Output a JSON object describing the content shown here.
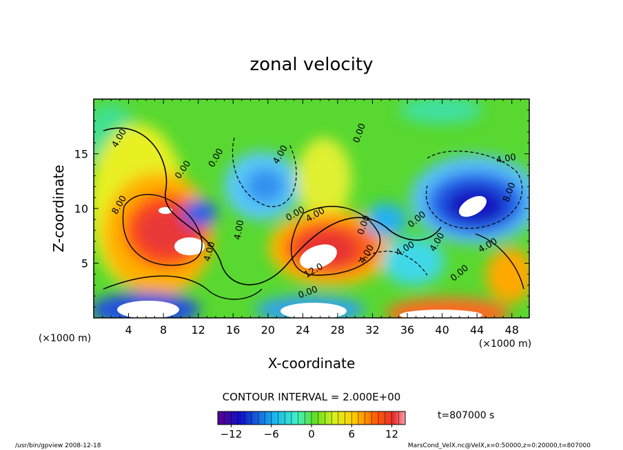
{
  "chart_data": {
    "type": "heatmap",
    "title": "zonal velocity",
    "xlabel": "X-coordinate",
    "ylabel": "Z-coordinate",
    "x_scale_note": "(×1000 m)",
    "y_scale_note": "(×1000 m)",
    "xlim": [
      0,
      50
    ],
    "ylim": [
      0,
      20
    ],
    "x_ticks": [
      4,
      8,
      12,
      16,
      20,
      24,
      28,
      32,
      36,
      40,
      44,
      48
    ],
    "x_tick_labels": [
      "4",
      "8",
      "12",
      "16",
      "20",
      "24",
      "28",
      "32",
      "36",
      "40",
      "44",
      "48"
    ],
    "y_ticks": [
      5,
      10,
      15
    ],
    "y_tick_labels": [
      "5",
      "10",
      "15"
    ],
    "contour_interval_text": "CONTOUR INTERVAL = 2.000E+00",
    "time_text": "t=807000 s",
    "colorbar": {
      "range": [
        -14,
        14
      ],
      "ticks": [
        -12,
        -6,
        0,
        6,
        12
      ],
      "tick_labels": [
        "−12",
        "−6",
        "0",
        "6",
        "12"
      ]
    },
    "contour_labels": [
      {
        "text": "4.00",
        "x": 3.2,
        "z": 16.3,
        "angle": -60
      },
      {
        "text": "8.00",
        "x": 3.2,
        "z": 10.2,
        "angle": -60
      },
      {
        "text": "0.00",
        "x": 10.5,
        "z": 13.4,
        "angle": -55
      },
      {
        "text": "4.00",
        "x": 13.6,
        "z": 6.0,
        "angle": -75
      },
      {
        "text": "4.00",
        "x": 17.0,
        "z": 8.0,
        "angle": -80
      },
      {
        "text": "0.00",
        "x": 14.3,
        "z": 14.5,
        "angle": -60
      },
      {
        "text": "4.00",
        "x": 21.7,
        "z": 14.8,
        "angle": -60
      },
      {
        "text": "0.00",
        "x": 23.3,
        "z": 9.3,
        "angle": -30
      },
      {
        "text": "4.00",
        "x": 25.6,
        "z": 9.2,
        "angle": -30
      },
      {
        "text": "12.0",
        "x": 25.4,
        "z": 4.1,
        "angle": -30
      },
      {
        "text": "0.00",
        "x": 24.7,
        "z": 2.1,
        "angle": -20
      },
      {
        "text": "0.00",
        "x": 30.8,
        "z": 16.8,
        "angle": -70
      },
      {
        "text": "0.00",
        "x": 31.3,
        "z": 8.4,
        "angle": -70
      },
      {
        "text": "4.00",
        "x": 31.6,
        "z": 5.7,
        "angle": -60
      },
      {
        "text": "4.00",
        "x": 35.9,
        "z": 6.1,
        "angle": -30
      },
      {
        "text": "0.00",
        "x": 37.3,
        "z": 8.8,
        "angle": -40
      },
      {
        "text": "4.00",
        "x": 39.7,
        "z": 6.8,
        "angle": -60
      },
      {
        "text": "4.00",
        "x": 47.4,
        "z": 14.3,
        "angle": -10
      },
      {
        "text": "8.00",
        "x": 48.0,
        "z": 11.4,
        "angle": -70
      },
      {
        "text": "4.00",
        "x": 45.4,
        "z": 6.4,
        "angle": -30
      },
      {
        "text": "0.00",
        "x": 42.2,
        "z": 3.9,
        "angle": -40
      }
    ]
  },
  "footer": {
    "left": "/usr/bin/gpview  2008-12-18",
    "right": "MarsCond_VelX.nc@VelX,x=0:50000,z=0:20000,t=807000"
  }
}
